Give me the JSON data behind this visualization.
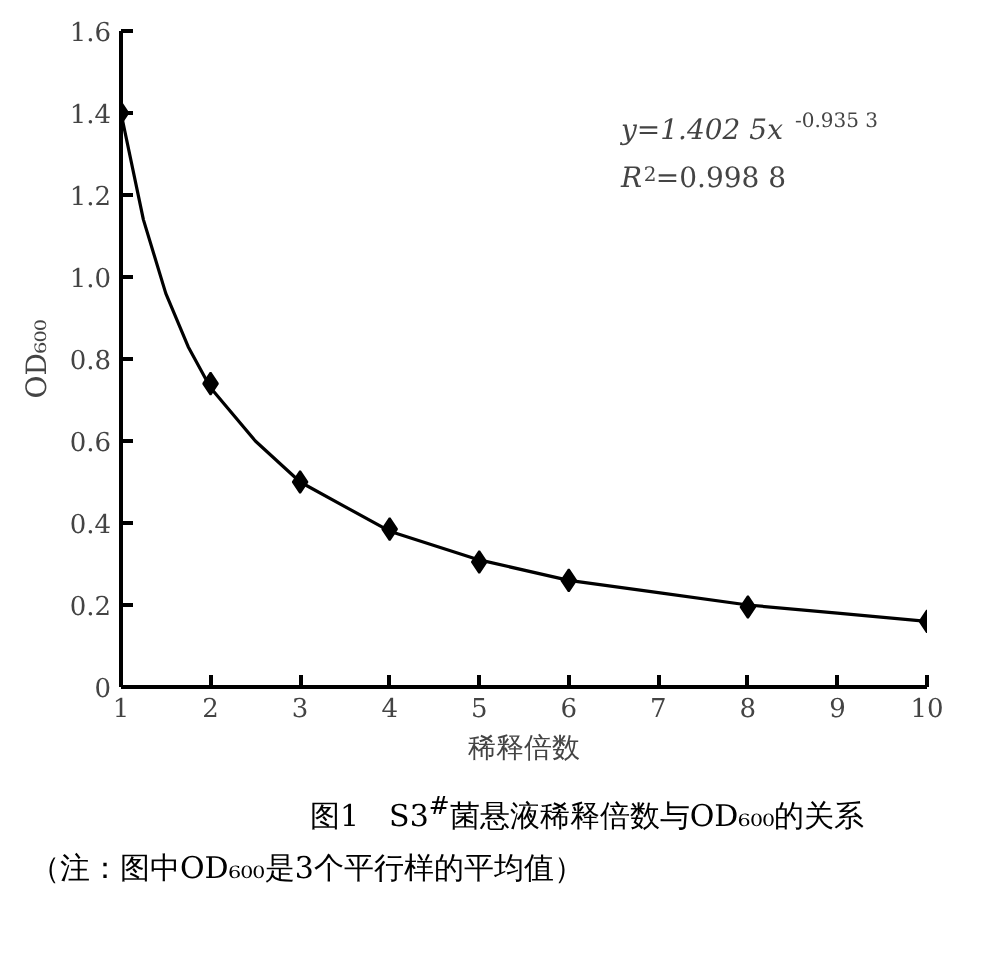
{
  "chart_data": {
    "type": "scatter",
    "xlabel": "稀释倍数",
    "ylabel": "OD₆₀₀",
    "xlim": [
      1,
      10
    ],
    "ylim": [
      0,
      1.6
    ],
    "xticks": [
      1,
      2,
      3,
      4,
      5,
      6,
      7,
      8,
      9,
      10
    ],
    "yticks": [
      0,
      0.2,
      0.4,
      0.6,
      0.8,
      {
        "value": 1.0,
        "label": "1.0"
      },
      1.2,
      1.4,
      1.6
    ],
    "grid": false,
    "series": [
      {
        "marker": "diamond",
        "color": "#000000",
        "x": [
          1,
          2,
          3,
          4,
          5,
          6,
          8,
          10
        ],
        "values": [
          1.4,
          0.74,
          0.5,
          0.385,
          0.305,
          0.26,
          0.195,
          0.16
        ]
      },
      {
        "type": "line",
        "marker": "none",
        "line_style": "solid",
        "color": "#000000",
        "x": [
          1,
          1.25,
          1.5,
          1.75,
          2,
          2.5,
          3,
          3.5,
          4,
          5,
          6,
          7,
          8,
          9,
          10
        ],
        "values": [
          1.4,
          1.14,
          0.96,
          0.83,
          0.73,
          0.6,
          0.5,
          0.44,
          0.38,
          0.31,
          0.26,
          0.23,
          0.2,
          0.18,
          0.16
        ]
      }
    ],
    "annotations": [
      "y=1.402 5x$^{-0.935 3}$",
      "R$^{2}$=0.998 8",
      "图1　S3$^{#}$菌悬液稀释倍数与OD₆₀₀的关系",
      "（注：图中OD₆₀₀是3个平行样的平均值）"
    ]
  }
}
